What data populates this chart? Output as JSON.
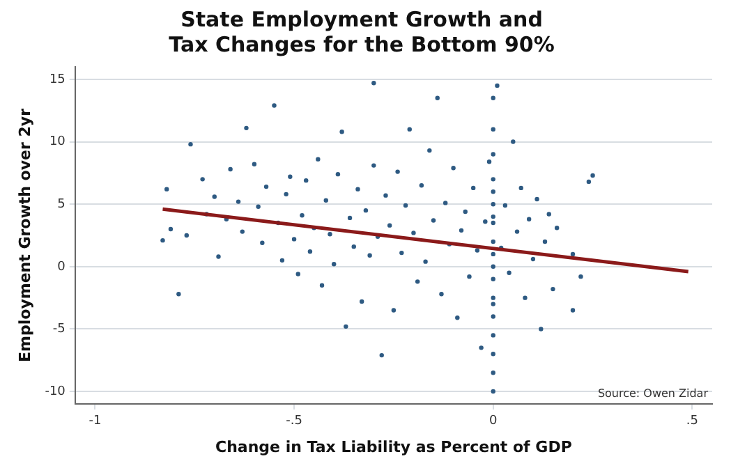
{
  "chart_data": {
    "type": "scatter",
    "title": "State Employment Growth and\nTax Changes for the Bottom 90%",
    "xlabel": "Change in Tax Liability as Percent of GDP",
    "ylabel": "Employment Growth over 2yr",
    "annotations": [
      "Source: Owen Zidar"
    ],
    "xlim": [
      -1.05,
      0.55
    ],
    "xticks": [
      {
        "value": -1,
        "label": "-1"
      },
      {
        "value": -0.5,
        "label": "-.5"
      },
      0,
      {
        "value": 0.5,
        "label": ".5"
      }
    ],
    "ylim": [
      -11,
      16
    ],
    "yticks": [
      -10,
      -5,
      0,
      5,
      10,
      15
    ],
    "grid": "y",
    "legend": false,
    "marker": "circle",
    "series": [
      {
        "color": "#2e5a82",
        "x": [
          -0.83,
          -0.82,
          -0.81,
          -0.79,
          -0.77,
          -0.76,
          -0.73,
          -0.72,
          -0.7,
          -0.69,
          -0.67,
          -0.66,
          -0.64,
          -0.63,
          -0.62,
          -0.6,
          -0.59,
          -0.58,
          -0.57,
          -0.55,
          -0.54,
          -0.53,
          -0.52,
          -0.51,
          -0.5,
          -0.49,
          -0.48,
          -0.47,
          -0.46,
          -0.45,
          -0.44,
          -0.43,
          -0.42,
          -0.41,
          -0.4,
          -0.39,
          -0.38,
          -0.37,
          -0.36,
          -0.35,
          -0.34,
          -0.33,
          -0.32,
          -0.31,
          -0.3,
          -0.29,
          -0.28,
          -0.27,
          -0.26,
          -0.25,
          -0.24,
          -0.23,
          -0.22,
          -0.21,
          -0.2,
          -0.19,
          -0.18,
          -0.17,
          -0.16,
          -0.15,
          -0.14,
          -0.13,
          -0.12,
          -0.11,
          -0.1,
          -0.09,
          -0.08,
          -0.07,
          -0.06,
          -0.05,
          -0.04,
          -0.03,
          -0.02,
          -0.01,
          0,
          0,
          0,
          0,
          0,
          0,
          0,
          0,
          0,
          0,
          0,
          0,
          0,
          0,
          0,
          0,
          0,
          0,
          0,
          0.01,
          0.02,
          0.03,
          0.04,
          0.05,
          0.06,
          0.07,
          0.08,
          0.09,
          0.1,
          0.11,
          0.12,
          0.13,
          0.14,
          0.15,
          0.16,
          0.2,
          0.22,
          0.24,
          0.25,
          0.2,
          -0.3
        ],
        "values": [
          2.1,
          6.2,
          3,
          -2.2,
          2.5,
          9.8,
          7,
          4.2,
          5.6,
          0.8,
          3.8,
          7.8,
          5.2,
          2.8,
          11.1,
          8.2,
          4.8,
          1.9,
          6.4,
          12.9,
          3.5,
          0.5,
          5.8,
          7.2,
          2.2,
          -0.6,
          4.1,
          6.9,
          1.2,
          3.1,
          8.6,
          -1.5,
          5.3,
          2.6,
          0.2,
          7.4,
          10.8,
          -4.8,
          3.9,
          1.6,
          6.2,
          -2.8,
          4.5,
          0.9,
          8.1,
          2.4,
          -7.1,
          5.7,
          3.3,
          -3.5,
          7.6,
          1.1,
          4.9,
          11,
          2.7,
          -1.2,
          6.5,
          0.4,
          9.3,
          3.7,
          13.5,
          -2.2,
          5.1,
          1.8,
          7.9,
          -4.1,
          2.9,
          4.4,
          -0.8,
          6.3,
          1.3,
          -6.5,
          3.6,
          8.4,
          13.5,
          11,
          9,
          7,
          5,
          3.5,
          2,
          1,
          0,
          -1,
          -2.5,
          -4,
          -5.5,
          -7,
          -8.5,
          -10,
          6,
          4,
          -3,
          14.5,
          1.5,
          4.9,
          -0.5,
          10,
          2.8,
          6.3,
          -2.5,
          3.8,
          0.6,
          5.4,
          -5,
          2,
          4.2,
          -1.8,
          3.1,
          1,
          -0.8,
          6.8,
          7.3,
          -3.5,
          14.7
        ]
      },
      {
        "type": "line",
        "color": "#8b1a1a",
        "marker": "none",
        "x": [
          -0.83,
          0.49
        ],
        "values": [
          4.6,
          -0.4
        ]
      }
    ]
  }
}
